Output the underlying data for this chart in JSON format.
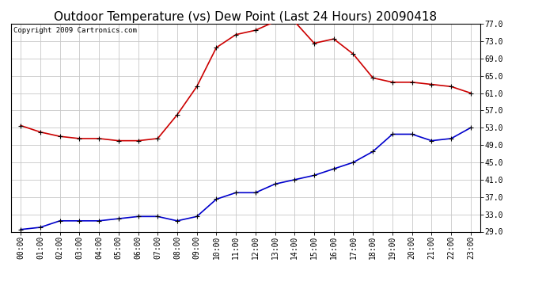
{
  "title": "Outdoor Temperature (vs) Dew Point (Last 24 Hours) 20090418",
  "copyright": "Copyright 2009 Cartronics.com",
  "x_labels": [
    "00:00",
    "01:00",
    "02:00",
    "03:00",
    "04:00",
    "05:00",
    "06:00",
    "07:00",
    "08:00",
    "09:00",
    "10:00",
    "11:00",
    "12:00",
    "13:00",
    "14:00",
    "15:00",
    "16:00",
    "17:00",
    "18:00",
    "19:00",
    "20:00",
    "21:00",
    "22:00",
    "23:00"
  ],
  "temp_red": [
    53.5,
    52.0,
    51.0,
    50.5,
    50.5,
    50.0,
    50.0,
    50.5,
    56.0,
    62.5,
    71.5,
    74.5,
    75.5,
    77.5,
    77.5,
    72.5,
    73.5,
    70.0,
    64.5,
    63.5,
    63.5,
    63.0,
    62.5,
    61.0
  ],
  "temp_blue": [
    29.5,
    30.0,
    31.5,
    31.5,
    31.5,
    32.0,
    32.5,
    32.5,
    31.5,
    32.5,
    36.5,
    38.0,
    38.0,
    40.0,
    41.0,
    42.0,
    43.5,
    45.0,
    47.5,
    51.5,
    51.5,
    50.0,
    50.5,
    53.0
  ],
  "ylim_min": 29.0,
  "ylim_max": 77.0,
  "yticks": [
    29.0,
    33.0,
    37.0,
    41.0,
    45.0,
    49.0,
    53.0,
    57.0,
    61.0,
    65.0,
    69.0,
    73.0,
    77.0
  ],
  "red_color": "#cc0000",
  "blue_color": "#0000cc",
  "bg_color": "#ffffff",
  "grid_color": "#c8c8c8",
  "title_fontsize": 11,
  "tick_fontsize": 7,
  "copyright_fontsize": 6.5
}
